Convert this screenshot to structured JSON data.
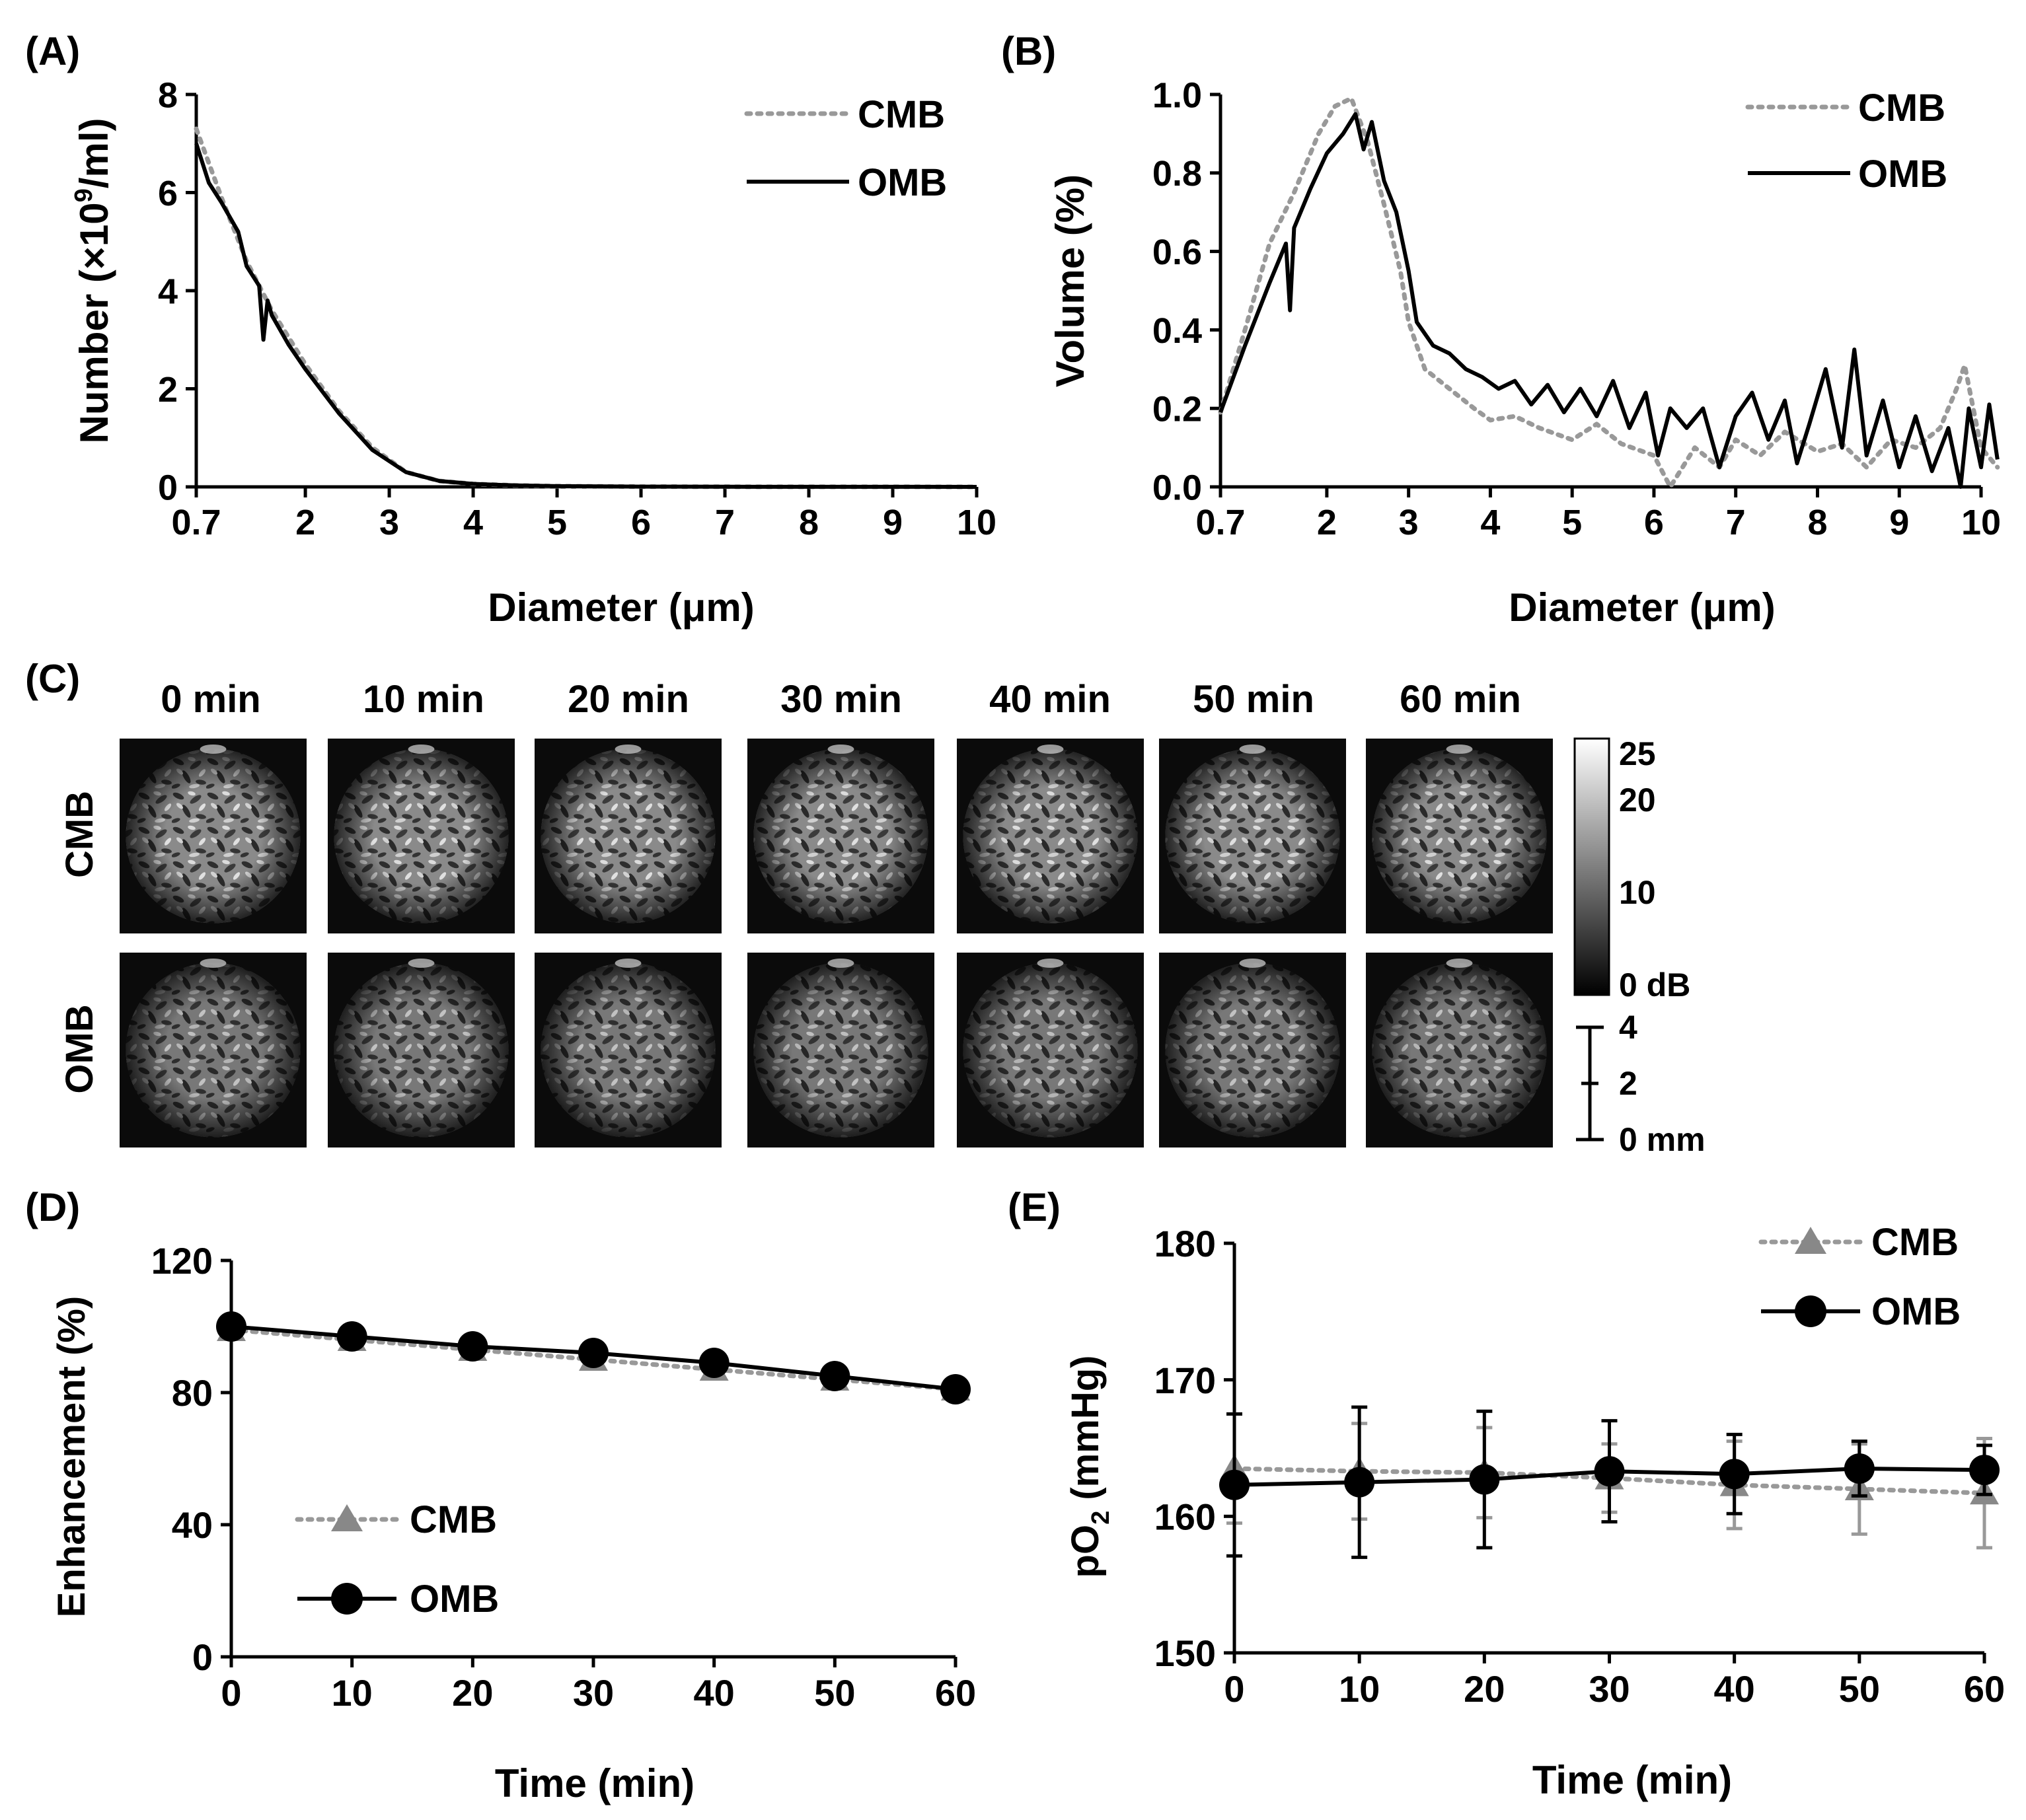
{
  "panels": {
    "A": {
      "label": "(A)"
    },
    "B": {
      "label": "(B)"
    },
    "C": {
      "label": "(C)"
    },
    "D": {
      "label": "(D)"
    },
    "E": {
      "label": "(E)"
    }
  },
  "colors": {
    "cmb": "#999999",
    "omb": "#000000"
  },
  "panel_c": {
    "time_labels": [
      "0 min",
      "10 min",
      "20 min",
      "30 min",
      "40 min",
      "50 min",
      "60 min"
    ],
    "row_labels": [
      "CMB",
      "OMB"
    ],
    "colorbar": {
      "ticks": [
        "25",
        "20",
        "10",
        "0 dB"
      ],
      "values": [
        25,
        20,
        10,
        0
      ],
      "range": [
        0,
        25
      ]
    },
    "scalebar": {
      "ticks": [
        "4",
        "2",
        "0 mm"
      ],
      "values": [
        4,
        2,
        0
      ]
    }
  },
  "chart_data": [
    {
      "id": "A",
      "type": "line",
      "xlabel": "Diameter (μm)",
      "ylabel_main": "Number (×10",
      "ylabel_sup": "9",
      "ylabel_tail": "/ml)",
      "xlim": [
        0.7,
        10
      ],
      "ylim": [
        0,
        8
      ],
      "xticks": [
        0.7,
        2,
        3,
        4,
        5,
        6,
        7,
        8,
        9,
        10
      ],
      "xtick_labels": [
        "0.7",
        "2",
        "3",
        "4",
        "5",
        "6",
        "7",
        "8",
        "9",
        "10"
      ],
      "yticks": [
        0,
        2,
        4,
        6,
        8
      ],
      "ytick_labels": [
        "0",
        "2",
        "4",
        "6",
        "8"
      ],
      "legend": [
        "CMB",
        "OMB"
      ],
      "series": [
        {
          "name": "CMB",
          "style": "dotted",
          "x": [
            0.7,
            1.0,
            1.3,
            1.6,
            2.0,
            2.4,
            2.8,
            3.2,
            3.6,
            4.0,
            4.5,
            5.0,
            6.0,
            7.0,
            8.0,
            9.0,
            10.0
          ],
          "y": [
            7.3,
            5.9,
            4.6,
            3.6,
            2.5,
            1.55,
            0.8,
            0.3,
            0.12,
            0.06,
            0.03,
            0.015,
            0.005,
            0.003,
            0.002,
            0.001,
            0.0
          ]
        },
        {
          "name": "OMB",
          "style": "solid",
          "x": [
            0.7,
            0.85,
            1.0,
            1.2,
            1.3,
            1.45,
            1.5,
            1.55,
            1.6,
            1.8,
            2.0,
            2.4,
            2.8,
            3.2,
            3.6,
            4.0,
            4.5,
            5.0,
            6.0,
            7.0,
            8.0,
            9.0,
            10.0
          ],
          "y": [
            7.0,
            6.2,
            5.8,
            5.2,
            4.5,
            4.1,
            3.0,
            3.8,
            3.5,
            2.9,
            2.4,
            1.5,
            0.75,
            0.3,
            0.12,
            0.06,
            0.03,
            0.015,
            0.005,
            0.003,
            0.002,
            0.001,
            0.0
          ]
        }
      ]
    },
    {
      "id": "B",
      "type": "line",
      "xlabel": "Diameter (μm)",
      "ylabel": "Volume (%)",
      "xlim": [
        0.7,
        10
      ],
      "ylim": [
        0,
        1.0
      ],
      "xticks": [
        0.7,
        2,
        3,
        4,
        5,
        6,
        7,
        8,
        9,
        10
      ],
      "xtick_labels": [
        "0.7",
        "2",
        "3",
        "4",
        "5",
        "6",
        "7",
        "8",
        "9",
        "10"
      ],
      "yticks": [
        0,
        0.2,
        0.4,
        0.6,
        0.8,
        1.0
      ],
      "ytick_labels": [
        "0.0",
        "0.2",
        "0.4",
        "0.6",
        "0.8",
        "1.0"
      ],
      "legend": [
        "CMB",
        "OMB"
      ],
      "series": [
        {
          "name": "CMB",
          "style": "dotted",
          "x": [
            0.7,
            1.0,
            1.3,
            1.6,
            1.9,
            2.1,
            2.3,
            2.5,
            2.7,
            2.9,
            3.0,
            3.2,
            3.5,
            3.8,
            4.0,
            4.3,
            4.6,
            5.0,
            5.3,
            5.6,
            6.0,
            6.2,
            6.5,
            6.8,
            7.0,
            7.3,
            7.6,
            8.0,
            8.3,
            8.6,
            8.9,
            9.2,
            9.5,
            9.7,
            9.8,
            10.0,
            10.2
          ],
          "y": [
            0.19,
            0.4,
            0.62,
            0.75,
            0.9,
            0.97,
            0.99,
            0.88,
            0.72,
            0.55,
            0.42,
            0.3,
            0.25,
            0.2,
            0.17,
            0.18,
            0.15,
            0.12,
            0.16,
            0.11,
            0.08,
            0.0,
            0.1,
            0.05,
            0.12,
            0.08,
            0.14,
            0.09,
            0.11,
            0.05,
            0.12,
            0.1,
            0.15,
            0.25,
            0.31,
            0.1,
            0.05
          ]
        },
        {
          "name": "OMB",
          "style": "solid",
          "x": [
            0.7,
            1.0,
            1.3,
            1.5,
            1.55,
            1.6,
            1.8,
            2.0,
            2.2,
            2.35,
            2.45,
            2.55,
            2.7,
            2.85,
            3.0,
            3.1,
            3.3,
            3.5,
            3.7,
            3.9,
            4.1,
            4.3,
            4.5,
            4.7,
            4.9,
            5.1,
            5.3,
            5.5,
            5.7,
            5.9,
            6.05,
            6.2,
            6.4,
            6.6,
            6.8,
            7.0,
            7.2,
            7.4,
            7.6,
            7.75,
            7.9,
            8.1,
            8.3,
            8.45,
            8.6,
            8.8,
            9.0,
            9.2,
            9.4,
            9.6,
            9.75,
            9.85,
            10.0,
            10.1,
            10.2
          ],
          "y": [
            0.19,
            0.36,
            0.52,
            0.62,
            0.45,
            0.66,
            0.76,
            0.85,
            0.9,
            0.95,
            0.86,
            0.93,
            0.78,
            0.7,
            0.55,
            0.42,
            0.36,
            0.34,
            0.3,
            0.28,
            0.25,
            0.27,
            0.21,
            0.26,
            0.19,
            0.25,
            0.18,
            0.27,
            0.15,
            0.24,
            0.08,
            0.2,
            0.15,
            0.2,
            0.05,
            0.18,
            0.24,
            0.12,
            0.22,
            0.06,
            0.16,
            0.3,
            0.1,
            0.35,
            0.08,
            0.22,
            0.05,
            0.18,
            0.04,
            0.15,
            0.0,
            0.2,
            0.05,
            0.21,
            0.07
          ]
        }
      ]
    },
    {
      "id": "D",
      "type": "line",
      "xlabel": "Time (min)",
      "ylabel": "Enhancement (%)",
      "xlim": [
        0,
        60
      ],
      "ylim": [
        0,
        120
      ],
      "xticks": [
        0,
        10,
        20,
        30,
        40,
        50,
        60
      ],
      "xtick_labels": [
        "0",
        "10",
        "20",
        "30",
        "40",
        "50",
        "60"
      ],
      "yticks": [
        0,
        40,
        80,
        120
      ],
      "ytick_labels": [
        "0",
        "40",
        "80",
        "120"
      ],
      "legend": [
        "CMB",
        "OMB"
      ],
      "x": [
        0,
        10,
        20,
        30,
        40,
        50,
        60
      ],
      "series": [
        {
          "name": "CMB",
          "marker": "triangle",
          "style": "dotted",
          "values": [
            99,
            96,
            93,
            90,
            87,
            84,
            81
          ],
          "err": [
            2,
            2,
            2,
            2,
            2,
            2,
            2
          ]
        },
        {
          "name": "OMB",
          "marker": "circle",
          "style": "solid",
          "values": [
            100,
            97,
            94,
            92,
            89,
            85,
            81
          ],
          "err": [
            1,
            1,
            1,
            1,
            1,
            1,
            1
          ]
        }
      ]
    },
    {
      "id": "E",
      "type": "line",
      "xlabel": "Time (min)",
      "ylabel_main": "pO",
      "ylabel_sub": "2",
      "ylabel_tail": " (mmHg)",
      "xlim": [
        0,
        60
      ],
      "ylim": [
        150,
        180
      ],
      "xticks": [
        0,
        10,
        20,
        30,
        40,
        50,
        60
      ],
      "xtick_labels": [
        "0",
        "10",
        "20",
        "30",
        "40",
        "50",
        "60"
      ],
      "yticks": [
        150,
        160,
        170,
        180
      ],
      "ytick_labels": [
        "150",
        "160",
        "170",
        "180"
      ],
      "legend": [
        "CMB",
        "OMB"
      ],
      "x": [
        0,
        10,
        20,
        30,
        40,
        50,
        60
      ],
      "series": [
        {
          "name": "CMB",
          "marker": "triangle",
          "style": "dotted",
          "values": [
            163.5,
            163.3,
            163.2,
            162.8,
            162.3,
            162.0,
            161.7
          ],
          "err": [
            4.0,
            3.5,
            3.3,
            2.5,
            3.2,
            3.3,
            4.0
          ]
        },
        {
          "name": "OMB",
          "marker": "circle",
          "style": "solid",
          "values": [
            162.3,
            162.5,
            162.7,
            163.3,
            163.1,
            163.5,
            163.4
          ],
          "err": [
            5.2,
            5.5,
            5.0,
            3.7,
            2.9,
            2.0,
            1.8
          ]
        }
      ]
    }
  ]
}
